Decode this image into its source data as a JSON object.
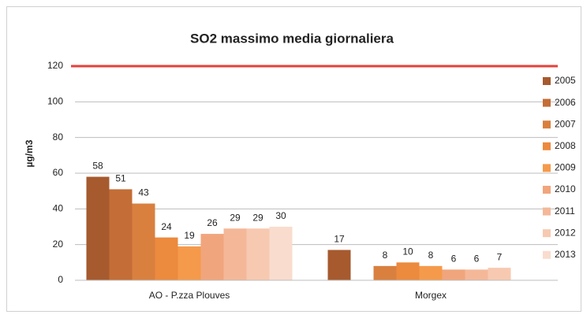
{
  "chart_data": {
    "type": "bar",
    "title": "SO2 massimo media giornaliera",
    "y_label": "µg/m3",
    "categories": [
      "AO - P.zza Plouves",
      "Morgex"
    ],
    "series": [
      {
        "name": "2005",
        "color": "#a65a2e",
        "values": [
          58,
          17
        ]
      },
      {
        "name": "2006",
        "color": "#c46d36",
        "values": [
          51,
          null
        ]
      },
      {
        "name": "2007",
        "color": "#d9803f",
        "values": [
          43,
          8
        ]
      },
      {
        "name": "2008",
        "color": "#ec8a3e",
        "values": [
          24,
          10
        ]
      },
      {
        "name": "2009",
        "color": "#f59a4b",
        "values": [
          19,
          8
        ]
      },
      {
        "name": "2010",
        "color": "#f1a57c",
        "values": [
          26,
          6
        ]
      },
      {
        "name": "2011",
        "color": "#f4b898",
        "values": [
          29,
          6
        ]
      },
      {
        "name": "2012",
        "color": "#f7c9b1",
        "values": [
          29,
          7
        ]
      },
      {
        "name": "2013",
        "color": "#f9dccd",
        "values": [
          30,
          null
        ]
      }
    ],
    "limit_line": {
      "value": 120,
      "color": "#e8403a"
    },
    "ylim": [
      0,
      120
    ],
    "yticks": [
      0,
      20,
      40,
      60,
      80,
      100,
      120
    ],
    "grid": true,
    "legend": "right"
  }
}
